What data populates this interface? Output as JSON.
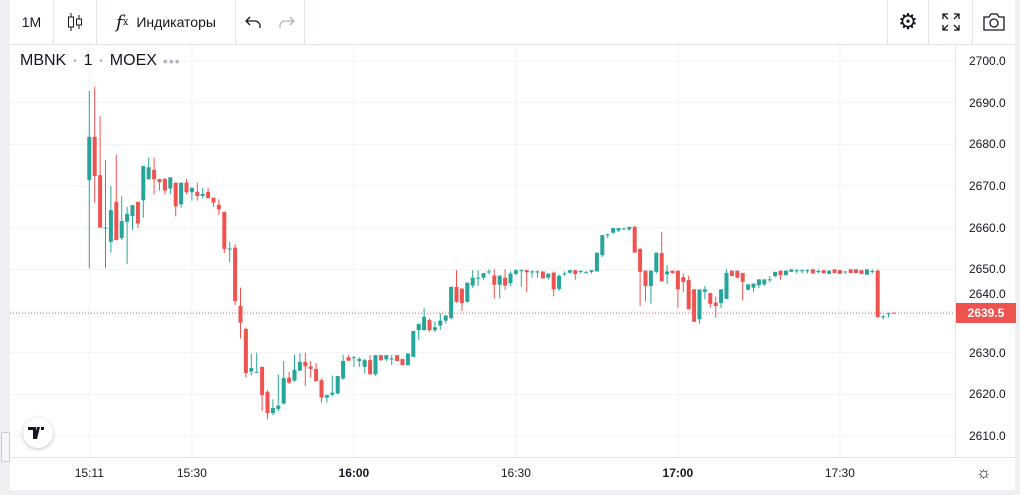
{
  "toolbar": {
    "interval": "1M",
    "indicators_label": "Индикаторы",
    "icons": [
      "candles-icon",
      "fx-icon",
      "undo-icon",
      "redo-icon",
      "settings-icon",
      "fullscreen-icon",
      "camera-icon"
    ]
  },
  "legend": {
    "symbol": "MBNK",
    "interval": "1",
    "exchange": "MOEX",
    "sep": "·",
    "more": "•••"
  },
  "colors": {
    "up": "#26a69a",
    "down": "#ef5350",
    "grid": "#f0f3fa",
    "last_price": "#ef5350"
  },
  "chart_data": {
    "type": "candlestick",
    "symbol": "MBNK",
    "ylim": [
      2605,
      2703.8
    ],
    "y_ticks": [
      "2700.0",
      "2690.0",
      "2680.0",
      "2670.0",
      "2660.0",
      "2650.0",
      "2640.0",
      "2630.0",
      "2620.0",
      "2610.0"
    ],
    "y_tick_values": [
      2700,
      2690,
      2680,
      2670,
      2660,
      2650,
      2640,
      2630,
      2620,
      2610
    ],
    "last_price": 2639.5,
    "last_price_label": "2639.5",
    "x_ticks": [
      {
        "label": "15:11",
        "minute": 0,
        "bold": false
      },
      {
        "label": "15:30",
        "minute": 19,
        "bold": false
      },
      {
        "label": "16:00",
        "minute": 49,
        "bold": true
      },
      {
        "label": "16:30",
        "minute": 79,
        "bold": false
      },
      {
        "label": "17:00",
        "minute": 109,
        "bold": true
      },
      {
        "label": "17:30",
        "minute": 139,
        "bold": false
      }
    ],
    "ohlc": [
      [
        2671.4,
        2692.8,
        2650.3,
        2681.8
      ],
      [
        2681.8,
        2693.8,
        2666.0,
        2672.4
      ],
      [
        2672.6,
        2686.7,
        2660.0,
        2660.0
      ],
      [
        2660.0,
        2676.2,
        2650.3,
        2660.0
      ],
      [
        2656.6,
        2670.0,
        2654.0,
        2664.2
      ],
      [
        2666.2,
        2677.5,
        2657.0,
        2657.0
      ],
      [
        2657.5,
        2667.5,
        2657.0,
        2661.6
      ],
      [
        2661.4,
        2665.0,
        2651.3,
        2663.3
      ],
      [
        2662.8,
        2665.4,
        2659.4,
        2665.4
      ],
      [
        2666.2,
        2666.2,
        2660.0,
        2661.0
      ],
      [
        2666.6,
        2674.8,
        2662.4,
        2674.8
      ],
      [
        2671.6,
        2676.8,
        2671.6,
        2674.5
      ],
      [
        2673.9,
        2676.8,
        2668.0,
        2671.6
      ],
      [
        2671.7,
        2671.7,
        2668.9,
        2670.9
      ],
      [
        2671.7,
        2671.9,
        2668.0,
        2668.9
      ],
      [
        2669.4,
        2672.1,
        2668.0,
        2672.1
      ],
      [
        2670.8,
        2670.8,
        2662.7,
        2665.1
      ],
      [
        2665.6,
        2670.8,
        2664.8,
        2670.8
      ],
      [
        2670.8,
        2671.7,
        2668.0,
        2668.5
      ],
      [
        2668.5,
        2669.6,
        2666.5,
        2669.6
      ],
      [
        2668.6,
        2670.8,
        2666.5,
        2667.6
      ],
      [
        2667.6,
        2669.6,
        2667.0,
        2668.1
      ],
      [
        2668.6,
        2669.6,
        2667.0,
        2667.1
      ],
      [
        2667.2,
        2667.2,
        2665.0,
        2666.0
      ],
      [
        2665.5,
        2666.8,
        2663.0,
        2664.4
      ],
      [
        2663.8,
        2663.8,
        2653.9,
        2654.9
      ],
      [
        2655.0,
        2656.6,
        2651.7,
        2655.0
      ],
      [
        2655.2,
        2656.0,
        2641.4,
        2642.4
      ],
      [
        2641.2,
        2645.6,
        2633.4,
        2637.2
      ],
      [
        2635.7,
        2636.0,
        2624.0,
        2625.1
      ],
      [
        2625.5,
        2629.7,
        2624.5,
        2626.3
      ],
      [
        2625.4,
        2630.0,
        2625.4,
        2625.4
      ],
      [
        2626.6,
        2626.6,
        2616.0,
        2619.8
      ],
      [
        2620.6,
        2621.0,
        2614.0,
        2615.5
      ],
      [
        2615.5,
        2618.8,
        2615.0,
        2616.7
      ],
      [
        2616.5,
        2624.8,
        2616.0,
        2617.3
      ],
      [
        2617.8,
        2628.0,
        2617.5,
        2623.9
      ],
      [
        2624.0,
        2625.4,
        2622.5,
        2622.8
      ],
      [
        2623.3,
        2629.5,
        2623.0,
        2625.9
      ],
      [
        2625.7,
        2629.9,
        2625.5,
        2627.8
      ],
      [
        2627.8,
        2630.0,
        2622.0,
        2626.7
      ],
      [
        2626.7,
        2628.0,
        2624.0,
        2626.1
      ],
      [
        2626.1,
        2627.5,
        2623.0,
        2623.2
      ],
      [
        2623.4,
        2623.8,
        2618.0,
        2619.2
      ],
      [
        2619.2,
        2620.0,
        2618.0,
        2619.8
      ],
      [
        2619.9,
        2624.5,
        2619.5,
        2620.4
      ],
      [
        2620.2,
        2624.4,
        2620.0,
        2624.4
      ],
      [
        2623.8,
        2629.5,
        2623.5,
        2628.0
      ],
      [
        2628.9,
        2629.5,
        2628.0,
        2628.1
      ],
      [
        2628.9,
        2629.2,
        2626.6,
        2628.9
      ],
      [
        2628.0,
        2628.9,
        2626.6,
        2628.5
      ],
      [
        2626.6,
        2628.5,
        2625.0,
        2628.2
      ],
      [
        2628.2,
        2629.4,
        2624.8,
        2624.8
      ],
      [
        2624.8,
        2629.4,
        2624.5,
        2629.4
      ],
      [
        2629.4,
        2629.4,
        2628.0,
        2628.2
      ],
      [
        2628.4,
        2629.4,
        2628.0,
        2629.4
      ],
      [
        2628.4,
        2629.4,
        2627.0,
        2628.6
      ],
      [
        2629.4,
        2629.4,
        2628.0,
        2628.0
      ],
      [
        2628.5,
        2628.5,
        2627.0,
        2627.0
      ],
      [
        2627.0,
        2629.8,
        2627.0,
        2629.8
      ],
      [
        2629.0,
        2635.2,
        2629.0,
        2635.2
      ],
      [
        2635.4,
        2637.0,
        2633.0,
        2636.9
      ],
      [
        2635.4,
        2640.7,
        2635.4,
        2638.6
      ],
      [
        2637.8,
        2638.2,
        2635.0,
        2635.4
      ],
      [
        2635.4,
        2637.5,
        2635.0,
        2636.1
      ],
      [
        2636.5,
        2639.5,
        2635.5,
        2637.7
      ],
      [
        2637.7,
        2639.0,
        2637.0,
        2638.9
      ],
      [
        2638.3,
        2645.8,
        2638.0,
        2645.8
      ],
      [
        2645.8,
        2649.8,
        2642.0,
        2642.2
      ],
      [
        2645.4,
        2645.4,
        2640.0,
        2641.9
      ],
      [
        2642.2,
        2646.8,
        2642.0,
        2646.8
      ],
      [
        2646.1,
        2649.8,
        2645.5,
        2648.0
      ],
      [
        2648.0,
        2649.8,
        2646.0,
        2648.0
      ],
      [
        2648.0,
        2649.1,
        2647.5,
        2649.1
      ],
      [
        2649.5,
        2650.0,
        2648.8,
        2649.5
      ],
      [
        2648.5,
        2650.0,
        2643.0,
        2646.3
      ],
      [
        2646.3,
        2648.5,
        2643.0,
        2648.5
      ],
      [
        2648.0,
        2650.0,
        2645.0,
        2646.1
      ],
      [
        2646.7,
        2649.5,
        2646.0,
        2649.0
      ],
      [
        2648.9,
        2650.0,
        2648.5,
        2649.8
      ],
      [
        2649.8,
        2650.0,
        2645.8,
        2649.8
      ],
      [
        2649.8,
        2649.8,
        2644.5,
        2649.3
      ],
      [
        2649.5,
        2649.8,
        2648.0,
        2649.5
      ],
      [
        2649.5,
        2649.8,
        2648.0,
        2649.5
      ],
      [
        2649.5,
        2649.5,
        2647.8,
        2647.8
      ],
      [
        2648.0,
        2649.0,
        2647.5,
        2649.0
      ],
      [
        2649.2,
        2649.5,
        2643.5,
        2645.2
      ],
      [
        2645.3,
        2648.8,
        2644.8,
        2648.4
      ],
      [
        2649.0,
        2649.5,
        2648.5,
        2649.0
      ],
      [
        2649.2,
        2649.8,
        2649.0,
        2649.8
      ],
      [
        2649.8,
        2649.8,
        2647.5,
        2648.9
      ],
      [
        2649.6,
        2649.8,
        2649.0,
        2649.6
      ],
      [
        2649.3,
        2649.6,
        2649.0,
        2649.3
      ],
      [
        2649.4,
        2649.8,
        2649.0,
        2649.8
      ],
      [
        2649.5,
        2654.0,
        2649.5,
        2654.0
      ],
      [
        2653.4,
        2658.2,
        2653.0,
        2658.2
      ],
      [
        2658.4,
        2658.6,
        2657.5,
        2658.4
      ],
      [
        2658.8,
        2659.9,
        2658.5,
        2659.9
      ],
      [
        2659.3,
        2659.9,
        2659.0,
        2659.9
      ],
      [
        2659.8,
        2660.0,
        2659.5,
        2659.8
      ],
      [
        2659.6,
        2660.2,
        2659.3,
        2660.2
      ],
      [
        2660.2,
        2660.5,
        2654.0,
        2654.0
      ],
      [
        2654.9,
        2655.1,
        2641.2,
        2649.4
      ],
      [
        2649.7,
        2649.7,
        2642.3,
        2646.0
      ],
      [
        2646.0,
        2649.7,
        2641.8,
        2649.7
      ],
      [
        2649.4,
        2654.0,
        2649.0,
        2654.0
      ],
      [
        2653.9,
        2659.0,
        2647.1,
        2647.1
      ],
      [
        2648.8,
        2651.0,
        2646.5,
        2649.5
      ],
      [
        2649.7,
        2649.7,
        2649.0,
        2649.1
      ],
      [
        2649.7,
        2649.7,
        2640.7,
        2645.2
      ],
      [
        2648.1,
        2649.0,
        2644.5,
        2647.0
      ],
      [
        2647.4,
        2648.5,
        2640.4,
        2640.4
      ],
      [
        2645.2,
        2645.2,
        2637.4,
        2637.4
      ],
      [
        2638.0,
        2645.2,
        2637.0,
        2645.2
      ],
      [
        2644.6,
        2646.0,
        2642.8,
        2645.2
      ],
      [
        2644.3,
        2644.3,
        2640.7,
        2641.7
      ],
      [
        2642.0,
        2643.5,
        2638.4,
        2641.2
      ],
      [
        2641.9,
        2645.2,
        2640.7,
        2645.2
      ],
      [
        2642.9,
        2650.0,
        2642.9,
        2649.1
      ],
      [
        2649.7,
        2649.7,
        2648.4,
        2648.4
      ],
      [
        2649.7,
        2649.7,
        2647.8,
        2648.0
      ],
      [
        2649.1,
        2649.2,
        2642.5,
        2647.0
      ],
      [
        2645.1,
        2646.4,
        2645.0,
        2646.4
      ],
      [
        2645.6,
        2646.6,
        2644.6,
        2646.6
      ],
      [
        2646.2,
        2647.6,
        2645.5,
        2647.6
      ],
      [
        2646.4,
        2647.6,
        2646.0,
        2647.6
      ],
      [
        2647.6,
        2648.4,
        2647.0,
        2647.6
      ],
      [
        2648.4,
        2649.4,
        2648.0,
        2649.4
      ],
      [
        2649.7,
        2649.7,
        2647.5,
        2648.6
      ],
      [
        2648.6,
        2649.7,
        2648.5,
        2649.7
      ],
      [
        2649.4,
        2650.0,
        2649.4,
        2650.0
      ],
      [
        2649.8,
        2650.0,
        2649.0,
        2649.8
      ],
      [
        2649.8,
        2650.0,
        2649.0,
        2649.8
      ],
      [
        2649.8,
        2650.0,
        2649.0,
        2649.8
      ],
      [
        2650.0,
        2650.0,
        2649.0,
        2649.0
      ],
      [
        2649.6,
        2650.0,
        2649.0,
        2649.6
      ],
      [
        2649.8,
        2649.8,
        2649.1,
        2649.1
      ],
      [
        2648.9,
        2649.7,
        2648.9,
        2649.7
      ],
      [
        2650.0,
        2650.0,
        2649.1,
        2649.1
      ],
      [
        2649.8,
        2649.8,
        2648.9,
        2648.9
      ],
      [
        2649.5,
        2649.5,
        2648.9,
        2649.5
      ],
      [
        2650.0,
        2650.0,
        2649.1,
        2649.1
      ],
      [
        2650.0,
        2650.0,
        2649.1,
        2649.1
      ],
      [
        2649.8,
        2649.8,
        2648.9,
        2648.9
      ],
      [
        2648.7,
        2650.0,
        2648.7,
        2650.0
      ],
      [
        2649.6,
        2650.0,
        2649.0,
        2649.6
      ],
      [
        2649.7,
        2650.0,
        2638.5,
        2638.5
      ],
      [
        2638.7,
        2639.0,
        2638.0,
        2638.7
      ],
      [
        2639.5,
        2639.6,
        2638.5,
        2639.5
      ],
      [
        2639.6,
        2639.6,
        2639.4,
        2639.5
      ]
    ]
  }
}
